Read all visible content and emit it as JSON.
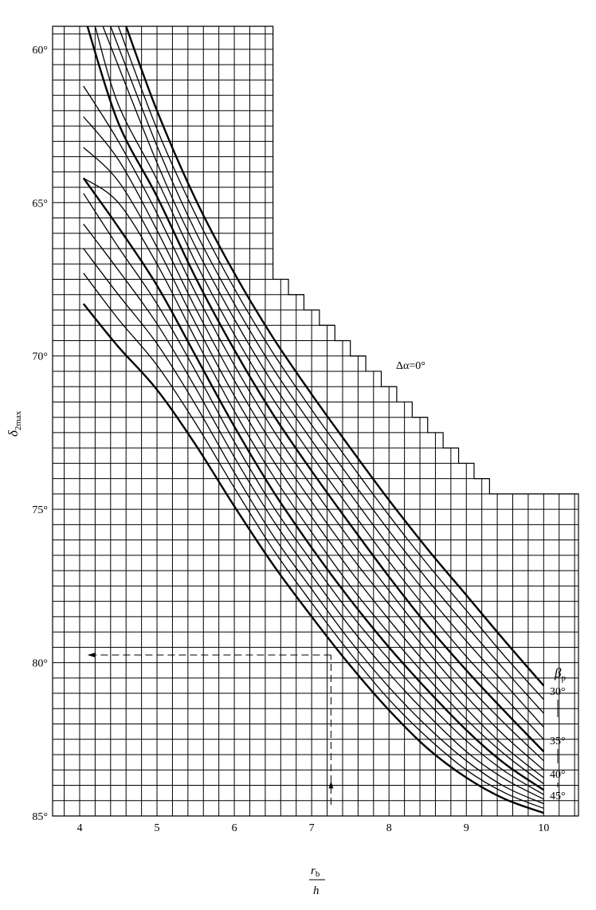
{
  "chart_data": {
    "type": "line",
    "title": "",
    "xlabel_numerator": "r",
    "xlabel_numerator_sub": "b",
    "xlabel_denominator": "h",
    "ylabel_symbol": "δ",
    "ylabel_sub": "2max",
    "xlim": [
      3.65,
      10.45
    ],
    "ylim": [
      59.25,
      85.0
    ],
    "y_inverted": true,
    "grid": true,
    "x_ticks": [
      "4",
      "5",
      "6",
      "7",
      "8",
      "9",
      "10"
    ],
    "y_ticks": [
      "60°",
      "65°",
      "70°",
      "75°",
      "80°",
      "85°"
    ],
    "annotation": "Δα=0°",
    "legend_title_symbol": "β",
    "legend_title_sub": "p",
    "legend_entries": [
      "30°",
      "35°",
      "40°",
      "45°"
    ],
    "series_bold": [
      true,
      false,
      false,
      false,
      false,
      true,
      false,
      false,
      false,
      false,
      true,
      false,
      false,
      false,
      false,
      true
    ],
    "series": [
      {
        "beta": 30,
        "x": [
          4.6,
          5.0,
          5.5,
          6.0,
          6.5,
          7.0,
          7.5,
          8.0,
          8.5,
          9.0,
          9.5,
          10.0
        ],
        "y": [
          59.25,
          62.0,
          64.9,
          67.3,
          69.4,
          71.25,
          73.0,
          74.7,
          76.3,
          77.8,
          79.3,
          80.75
        ]
      },
      {
        "beta": 31,
        "x": [
          4.5,
          5.0,
          5.5,
          6.0,
          6.5,
          7.0,
          7.5,
          8.0,
          8.5,
          9.0,
          9.5,
          10.0
        ],
        "y": [
          59.25,
          62.6,
          65.4,
          67.8,
          69.9,
          71.75,
          73.5,
          75.2,
          76.8,
          78.3,
          79.8,
          81.2
        ]
      },
      {
        "beta": 32,
        "x": [
          4.4,
          5.0,
          5.5,
          6.0,
          6.5,
          7.0,
          7.5,
          8.0,
          8.5,
          9.0,
          9.5,
          10.0
        ],
        "y": [
          59.25,
          63.15,
          65.95,
          68.3,
          70.4,
          72.25,
          74.0,
          75.7,
          77.3,
          78.8,
          80.25,
          81.65
        ]
      },
      {
        "beta": 33,
        "x": [
          4.3,
          5.0,
          5.5,
          6.0,
          6.5,
          7.0,
          7.5,
          8.0,
          8.5,
          9.0,
          9.5,
          10.0
        ],
        "y": [
          59.25,
          63.7,
          66.45,
          68.8,
          70.9,
          72.75,
          74.5,
          76.2,
          77.8,
          79.3,
          80.7,
          82.1
        ]
      },
      {
        "beta": 34,
        "x": [
          4.2,
          4.5,
          5.0,
          5.5,
          6.0,
          6.5,
          7.0,
          7.5,
          8.0,
          8.5,
          9.0,
          9.5,
          10.0
        ],
        "y": [
          59.25,
          61.8,
          64.25,
          66.95,
          69.3,
          71.4,
          73.25,
          75.0,
          76.7,
          78.3,
          79.8,
          81.15,
          82.5
        ]
      },
      {
        "beta": 35,
        "x": [
          4.1,
          4.5,
          5.0,
          5.5,
          6.0,
          6.5,
          7.0,
          7.5,
          8.0,
          8.5,
          9.0,
          9.5,
          10.0
        ],
        "y": [
          59.25,
          62.4,
          64.8,
          67.45,
          69.8,
          71.9,
          73.75,
          75.5,
          77.2,
          78.8,
          80.25,
          81.6,
          82.9
        ]
      },
      {
        "beta": 36,
        "x": [
          4.05,
          4.5,
          5.0,
          5.5,
          6.0,
          6.5,
          7.0,
          7.5,
          8.0,
          8.5,
          9.0,
          9.5,
          10.0
        ],
        "y": [
          61.2,
          63.0,
          65.35,
          67.95,
          70.3,
          72.4,
          74.25,
          76.0,
          77.65,
          79.25,
          80.7,
          82.0,
          83.2
        ]
      },
      {
        "beta": 37,
        "x": [
          4.05,
          4.5,
          5.0,
          5.5,
          6.0,
          6.5,
          7.0,
          7.5,
          8.0,
          8.5,
          9.0,
          9.5,
          10.0
        ],
        "y": [
          62.2,
          63.6,
          65.9,
          68.45,
          70.8,
          72.9,
          74.75,
          76.5,
          78.1,
          79.65,
          81.1,
          82.4,
          83.5
        ]
      },
      {
        "beta": 38,
        "x": [
          4.05,
          4.5,
          5.0,
          5.5,
          6.0,
          6.5,
          7.0,
          7.5,
          8.0,
          8.5,
          9.0,
          9.5,
          10.0
        ],
        "y": [
          63.2,
          64.3,
          66.45,
          68.95,
          71.3,
          73.4,
          75.25,
          77.0,
          78.6,
          80.1,
          81.5,
          82.75,
          83.75
        ]
      },
      {
        "beta": 39,
        "x": [
          4.05,
          4.5,
          5.0,
          5.5,
          6.0,
          6.5,
          7.0,
          7.5,
          8.0,
          8.5,
          9.0,
          9.5,
          10.0
        ],
        "y": [
          64.2,
          65.0,
          67.0,
          69.45,
          71.8,
          73.9,
          75.75,
          77.5,
          79.05,
          80.5,
          81.85,
          83.0,
          83.95
        ]
      },
      {
        "beta": 40,
        "x": [
          4.05,
          4.5,
          5.0,
          5.5,
          6.0,
          6.5,
          7.0,
          7.5,
          8.0,
          8.5,
          9.0,
          9.5,
          10.0
        ],
        "y": [
          64.2,
          65.8,
          67.7,
          70.0,
          72.3,
          74.4,
          76.25,
          77.95,
          79.5,
          80.9,
          82.2,
          83.3,
          84.15
        ]
      },
      {
        "beta": 41,
        "x": [
          4.05,
          4.5,
          5.0,
          5.5,
          6.0,
          6.5,
          7.0,
          7.5,
          8.0,
          8.5,
          9.0,
          9.5,
          10.0
        ],
        "y": [
          64.7,
          66.45,
          68.3,
          70.5,
          72.8,
          74.9,
          76.7,
          78.4,
          79.9,
          81.3,
          82.55,
          83.55,
          84.3
        ]
      },
      {
        "beta": 42,
        "x": [
          4.05,
          4.5,
          5.0,
          5.5,
          6.0,
          6.5,
          7.0,
          7.5,
          8.0,
          8.5,
          9.0,
          9.5,
          10.0
        ],
        "y": [
          65.7,
          67.2,
          68.95,
          71.05,
          73.3,
          75.35,
          77.15,
          78.85,
          80.35,
          81.7,
          82.9,
          83.8,
          84.45
        ]
      },
      {
        "beta": 43,
        "x": [
          4.05,
          4.5,
          5.0,
          5.5,
          6.0,
          6.5,
          7.0,
          7.5,
          8.0,
          8.5,
          9.0,
          9.5,
          10.0
        ],
        "y": [
          66.5,
          68.0,
          69.6,
          71.6,
          73.8,
          75.85,
          77.6,
          79.3,
          80.8,
          82.1,
          83.2,
          84.05,
          84.6
        ]
      },
      {
        "beta": 44,
        "x": [
          4.05,
          4.5,
          5.0,
          5.5,
          6.0,
          6.5,
          7.0,
          7.5,
          8.0,
          8.5,
          9.0,
          9.5,
          10.0
        ],
        "y": [
          67.3,
          68.8,
          70.3,
          72.2,
          74.3,
          76.3,
          78.05,
          79.7,
          81.2,
          82.45,
          83.5,
          84.25,
          84.75
        ]
      },
      {
        "beta": 45,
        "x": [
          4.05,
          4.5,
          5.0,
          5.5,
          6.0,
          6.5,
          7.0,
          7.5,
          8.0,
          8.5,
          9.0,
          9.5,
          10.0
        ],
        "y": [
          68.3,
          69.7,
          71.1,
          72.9,
          74.9,
          76.8,
          78.5,
          80.1,
          81.55,
          82.8,
          83.75,
          84.45,
          84.9
        ]
      }
    ],
    "example_path": {
      "x_value": 7.25,
      "y_value": 79.75,
      "x_start": 4.1
    }
  }
}
